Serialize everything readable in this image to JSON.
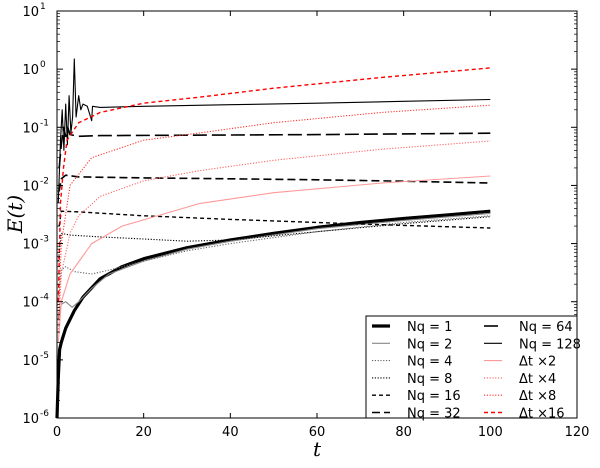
{
  "chart_data": {
    "type": "line",
    "title": "",
    "xlabel": "t",
    "ylabel": "E(t)",
    "xlim": [
      0,
      120
    ],
    "ylim": [
      1e-06,
      10
    ],
    "yscale": "log",
    "grid": false,
    "legend_position": "bottom-right",
    "x_ticks": [
      "0",
      "20",
      "40",
      "60",
      "80",
      "100",
      "120"
    ],
    "y_ticks": [
      {
        "base": "10",
        "exp": "-6"
      },
      {
        "base": "10",
        "exp": "-5"
      },
      {
        "base": "10",
        "exp": "-4"
      },
      {
        "base": "10",
        "exp": "-3"
      },
      {
        "base": "10",
        "exp": "-2"
      },
      {
        "base": "10",
        "exp": "-1"
      },
      {
        "base": "10",
        "exp": "0"
      },
      {
        "base": "10",
        "exp": "1"
      }
    ],
    "series": [
      {
        "name": "Nq = 1",
        "color": "#000000",
        "style": "thick-solid",
        "points": [
          [
            0,
            1e-06
          ],
          [
            0.3,
            5e-06
          ],
          [
            0.6,
            1.5e-05
          ],
          [
            1,
            2e-05
          ],
          [
            2,
            3.5e-05
          ],
          [
            4,
            7e-05
          ],
          [
            6,
            0.00012
          ],
          [
            10,
            0.00025
          ],
          [
            15,
            0.0004
          ],
          [
            20,
            0.00055
          ],
          [
            30,
            0.00085
          ],
          [
            40,
            0.00115
          ],
          [
            50,
            0.0015
          ],
          [
            60,
            0.0019
          ],
          [
            70,
            0.0023
          ],
          [
            80,
            0.0027
          ],
          [
            90,
            0.0031
          ],
          [
            100,
            0.0036
          ]
        ]
      },
      {
        "name": "Nq = 2",
        "color": "#888888",
        "style": "solid",
        "points": [
          [
            0.3,
            5e-05
          ],
          [
            1,
            9e-05
          ],
          [
            2,
            0.0001
          ],
          [
            3.5,
            8e-05
          ],
          [
            5,
            0.0001
          ],
          [
            8,
            0.00017
          ],
          [
            12,
            0.0003
          ],
          [
            20,
            0.0005
          ],
          [
            30,
            0.0008
          ],
          [
            40,
            0.0011
          ],
          [
            60,
            0.0018
          ],
          [
            80,
            0.0025
          ],
          [
            100,
            0.0033
          ]
        ]
      },
      {
        "name": "Nq = 4",
        "color": "#666666",
        "style": "dotted",
        "points": [
          [
            0.3,
            0.0001
          ],
          [
            1,
            0.00035
          ],
          [
            2,
            0.0004
          ],
          [
            4,
            0.00033
          ],
          [
            8,
            0.0003
          ],
          [
            12,
            0.00035
          ],
          [
            20,
            0.0005
          ],
          [
            30,
            0.00075
          ],
          [
            40,
            0.001
          ],
          [
            60,
            0.0016
          ],
          [
            80,
            0.0023
          ],
          [
            100,
            0.003
          ]
        ]
      },
      {
        "name": "Nq = 8",
        "color": "#000000",
        "style": "dotted",
        "points": [
          [
            0.3,
            0.0005
          ],
          [
            1,
            0.0015
          ],
          [
            3,
            0.0014
          ],
          [
            10,
            0.0013
          ],
          [
            20,
            0.0012
          ],
          [
            30,
            0.0011
          ],
          [
            40,
            0.00115
          ],
          [
            60,
            0.0016
          ],
          [
            80,
            0.0022
          ],
          [
            100,
            0.0029
          ]
        ]
      },
      {
        "name": "Nq = 16",
        "color": "#000000",
        "style": "short-dash",
        "points": [
          [
            0.5,
            0.002
          ],
          [
            1,
            0.0036
          ],
          [
            5,
            0.0035
          ],
          [
            20,
            0.003
          ],
          [
            40,
            0.0026
          ],
          [
            60,
            0.0023
          ],
          [
            80,
            0.00205
          ],
          [
            100,
            0.00185
          ]
        ]
      },
      {
        "name": "Nq = 32",
        "color": "#000000",
        "style": "dash",
        "points": [
          [
            0.5,
            0.008
          ],
          [
            1,
            0.013
          ],
          [
            2,
            0.015
          ],
          [
            5,
            0.014
          ],
          [
            20,
            0.0135
          ],
          [
            40,
            0.013
          ],
          [
            60,
            0.0125
          ],
          [
            80,
            0.0118
          ],
          [
            100,
            0.011
          ]
        ]
      },
      {
        "name": "Nq = 64",
        "color": "#000000",
        "style": "long-dash",
        "points": [
          [
            0.5,
            0.02
          ],
          [
            1,
            0.05
          ],
          [
            1.5,
            0.1
          ],
          [
            2,
            0.07
          ],
          [
            2.5,
            0.1
          ],
          [
            3,
            0.075
          ],
          [
            5,
            0.07
          ],
          [
            10,
            0.072
          ],
          [
            30,
            0.073
          ],
          [
            60,
            0.075
          ],
          [
            100,
            0.079
          ]
        ]
      },
      {
        "name": "Nq = 128",
        "color": "#000000",
        "style": "solid",
        "points": [
          [
            0.3,
            0.005
          ],
          [
            0.8,
            0.06
          ],
          [
            1.2,
            0.2
          ],
          [
            1.6,
            0.04
          ],
          [
            2,
            0.25
          ],
          [
            2.4,
            0.05
          ],
          [
            2.8,
            0.35
          ],
          [
            3.2,
            0.08
          ],
          [
            3.6,
            0.15
          ],
          [
            4,
            1.5
          ],
          [
            4.4,
            0.15
          ],
          [
            5,
            0.35
          ],
          [
            5.5,
            0.2
          ],
          [
            6,
            0.25
          ],
          [
            7,
            0.23
          ],
          [
            8,
            0.13
          ],
          [
            8.2,
            0.23
          ],
          [
            10,
            0.22
          ],
          [
            20,
            0.23
          ],
          [
            40,
            0.245
          ],
          [
            60,
            0.26
          ],
          [
            80,
            0.28
          ],
          [
            100,
            0.3
          ]
        ]
      },
      {
        "name": "Δt ×2",
        "color": "#ff9999",
        "style": "solid",
        "points": [
          [
            0.3,
            2e-05
          ],
          [
            1,
            0.0001
          ],
          [
            3,
            0.0003
          ],
          [
            8,
            0.001
          ],
          [
            15,
            0.002
          ],
          [
            33,
            0.0049
          ],
          [
            50,
            0.0075
          ],
          [
            75,
            0.011
          ],
          [
            100,
            0.0145
          ]
        ]
      },
      {
        "name": "Δt ×4",
        "color": "#ff6666",
        "style": "dotted",
        "points": [
          [
            0.3,
            3e-05
          ],
          [
            1,
            0.0003
          ],
          [
            3,
            0.0015
          ],
          [
            5,
            0.003
          ],
          [
            10,
            0.0065
          ],
          [
            20,
            0.012
          ],
          [
            33,
            0.018
          ],
          [
            50,
            0.027
          ],
          [
            75,
            0.042
          ],
          [
            100,
            0.058
          ]
        ]
      },
      {
        "name": "Δt ×8",
        "color": "#ff3333",
        "style": "dotted",
        "points": [
          [
            0.3,
            5e-05
          ],
          [
            1,
            0.001
          ],
          [
            3,
            0.01
          ],
          [
            8,
            0.03
          ],
          [
            20,
            0.06
          ],
          [
            33,
            0.08
          ],
          [
            50,
            0.12
          ],
          [
            75,
            0.18
          ],
          [
            100,
            0.24
          ]
        ]
      },
      {
        "name": "Δt ×16",
        "color": "#ff0000",
        "style": "short-dash",
        "points": [
          [
            0.3,
            0.0001
          ],
          [
            0.8,
            0.005
          ],
          [
            1.5,
            0.02
          ],
          [
            2.3,
            0.06
          ],
          [
            5,
            0.12
          ],
          [
            10,
            0.18
          ],
          [
            20,
            0.26
          ],
          [
            33,
            0.33
          ],
          [
            50,
            0.47
          ],
          [
            75,
            0.72
          ],
          [
            100,
            1.05
          ]
        ]
      }
    ]
  }
}
